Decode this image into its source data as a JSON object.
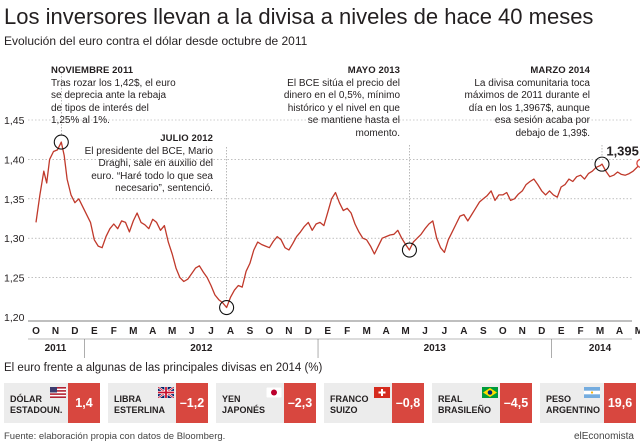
{
  "header": {
    "title": "Los inversores llevan a la divisa a niveles de hace 40 meses",
    "subtitle": "Evolución del euro contra el dólar desde octubre de 2011"
  },
  "annotations": [
    {
      "head": "NOVIEMBRE 2011",
      "lines": [
        "Tras rozar los 1,42$, el euro",
        "se deprecia ante la rebaja",
        "de tipos de interés del",
        "1,25% al 1%."
      ]
    },
    {
      "head": "JULIO 2012",
      "lines": [
        "El presidente del BCE, Mario",
        "Draghi, sale en auxilio del",
        "euro. “Haré todo lo que sea",
        "necesario”, sentenció."
      ]
    },
    {
      "head": "MAYO 2013",
      "lines": [
        "El BCE sitúa el precio del",
        "dinero en el 0,5%, mínimo",
        "histórico y el nivel en que",
        "se mantiene hasta el",
        "momento."
      ]
    },
    {
      "head": "MARZO 2014",
      "lines": [
        "La divisa comunitaria toca",
        "máximos de 2011 durante el",
        "día en los 1,3967$, aunque",
        "esa sesión acaba por",
        "debajo de 1,39$."
      ]
    }
  ],
  "chart_data": {
    "type": "line",
    "title": "",
    "xlabel": "",
    "ylabel": "",
    "ylim": [
      1.2,
      1.45
    ],
    "yticks": [
      "1,20",
      "1,25",
      "1,30",
      "1,35",
      "1,40",
      "1,45"
    ],
    "month_labels": [
      "O",
      "N",
      "D",
      "E",
      "F",
      "M",
      "A",
      "M",
      "J",
      "J",
      "A",
      "S",
      "O",
      "N",
      "D",
      "E",
      "F",
      "M",
      "A",
      "M",
      "J",
      "J",
      "A",
      "S",
      "O",
      "N",
      "D",
      "E",
      "F",
      "M",
      "A",
      "M"
    ],
    "year_labels": [
      {
        "label": "2011",
        "month_index": 1
      },
      {
        "label": "2012",
        "month_index": 8.5
      },
      {
        "label": "2013",
        "month_index": 20.5
      },
      {
        "label": "2014",
        "month_index": 29
      }
    ],
    "end_label": "1,395",
    "highlight_points": [
      {
        "month": 1.3,
        "value": 1.422
      },
      {
        "month": 9.8,
        "value": 1.212
      },
      {
        "month": 19.2,
        "value": 1.285
      },
      {
        "month": 29.1,
        "value": 1.394
      },
      {
        "month": 31.1,
        "value": 1.395
      }
    ],
    "series": [
      {
        "values": [
          [
            0.0,
            1.32
          ],
          [
            0.2,
            1.355
          ],
          [
            0.4,
            1.385
          ],
          [
            0.55,
            1.37
          ],
          [
            0.7,
            1.4
          ],
          [
            0.9,
            1.41
          ],
          [
            1.1,
            1.412
          ],
          [
            1.3,
            1.422
          ],
          [
            1.45,
            1.405
          ],
          [
            1.6,
            1.375
          ],
          [
            1.8,
            1.355
          ],
          [
            2.0,
            1.345
          ],
          [
            2.2,
            1.35
          ],
          [
            2.4,
            1.34
          ],
          [
            2.6,
            1.33
          ],
          [
            2.8,
            1.32
          ],
          [
            3.0,
            1.298
          ],
          [
            3.2,
            1.29
          ],
          [
            3.4,
            1.288
          ],
          [
            3.6,
            1.302
          ],
          [
            3.8,
            1.312
          ],
          [
            4.0,
            1.318
          ],
          [
            4.2,
            1.312
          ],
          [
            4.4,
            1.322
          ],
          [
            4.6,
            1.32
          ],
          [
            4.8,
            1.308
          ],
          [
            5.0,
            1.322
          ],
          [
            5.2,
            1.332
          ],
          [
            5.4,
            1.32
          ],
          [
            5.6,
            1.317
          ],
          [
            5.8,
            1.312
          ],
          [
            6.0,
            1.324
          ],
          [
            6.2,
            1.32
          ],
          [
            6.4,
            1.31
          ],
          [
            6.6,
            1.316
          ],
          [
            6.8,
            1.295
          ],
          [
            7.0,
            1.28
          ],
          [
            7.2,
            1.262
          ],
          [
            7.4,
            1.25
          ],
          [
            7.6,
            1.245
          ],
          [
            7.8,
            1.248
          ],
          [
            8.0,
            1.255
          ],
          [
            8.2,
            1.262
          ],
          [
            8.4,
            1.265
          ],
          [
            8.6,
            1.257
          ],
          [
            8.8,
            1.25
          ],
          [
            9.0,
            1.24
          ],
          [
            9.2,
            1.228
          ],
          [
            9.4,
            1.222
          ],
          [
            9.6,
            1.218
          ],
          [
            9.8,
            1.212
          ],
          [
            10.0,
            1.225
          ],
          [
            10.2,
            1.234
          ],
          [
            10.4,
            1.24
          ],
          [
            10.6,
            1.238
          ],
          [
            10.8,
            1.258
          ],
          [
            11.0,
            1.268
          ],
          [
            11.2,
            1.285
          ],
          [
            11.4,
            1.295
          ],
          [
            11.6,
            1.292
          ],
          [
            11.8,
            1.29
          ],
          [
            12.0,
            1.288
          ],
          [
            12.2,
            1.296
          ],
          [
            12.4,
            1.302
          ],
          [
            12.6,
            1.298
          ],
          [
            12.8,
            1.288
          ],
          [
            13.0,
            1.285
          ],
          [
            13.2,
            1.293
          ],
          [
            13.4,
            1.302
          ],
          [
            13.6,
            1.308
          ],
          [
            13.8,
            1.315
          ],
          [
            14.0,
            1.32
          ],
          [
            14.2,
            1.31
          ],
          [
            14.4,
            1.318
          ],
          [
            14.6,
            1.32
          ],
          [
            14.8,
            1.316
          ],
          [
            15.0,
            1.333
          ],
          [
            15.2,
            1.35
          ],
          [
            15.4,
            1.358
          ],
          [
            15.6,
            1.345
          ],
          [
            15.8,
            1.335
          ],
          [
            16.0,
            1.338
          ],
          [
            16.2,
            1.332
          ],
          [
            16.4,
            1.318
          ],
          [
            16.6,
            1.308
          ],
          [
            16.8,
            1.3
          ],
          [
            17.0,
            1.298
          ],
          [
            17.2,
            1.29
          ],
          [
            17.4,
            1.28
          ],
          [
            17.6,
            1.29
          ],
          [
            17.8,
            1.3
          ],
          [
            18.0,
            1.302
          ],
          [
            18.2,
            1.304
          ],
          [
            18.4,
            1.305
          ],
          [
            18.6,
            1.31
          ],
          [
            18.8,
            1.3
          ],
          [
            19.0,
            1.292
          ],
          [
            19.2,
            1.285
          ],
          [
            19.4,
            1.295
          ],
          [
            19.6,
            1.3
          ],
          [
            19.8,
            1.305
          ],
          [
            20.0,
            1.312
          ],
          [
            20.2,
            1.318
          ],
          [
            20.4,
            1.322
          ],
          [
            20.6,
            1.3
          ],
          [
            20.8,
            1.288
          ],
          [
            21.0,
            1.282
          ],
          [
            21.2,
            1.298
          ],
          [
            21.4,
            1.308
          ],
          [
            21.6,
            1.318
          ],
          [
            21.8,
            1.328
          ],
          [
            22.0,
            1.33
          ],
          [
            22.2,
            1.322
          ],
          [
            22.4,
            1.33
          ],
          [
            22.6,
            1.338
          ],
          [
            22.8,
            1.346
          ],
          [
            23.0,
            1.35
          ],
          [
            23.2,
            1.354
          ],
          [
            23.4,
            1.36
          ],
          [
            23.6,
            1.348
          ],
          [
            23.8,
            1.355
          ],
          [
            24.0,
            1.355
          ],
          [
            24.2,
            1.358
          ],
          [
            24.4,
            1.348
          ],
          [
            24.6,
            1.35
          ],
          [
            24.8,
            1.356
          ],
          [
            25.0,
            1.36
          ],
          [
            25.2,
            1.368
          ],
          [
            25.4,
            1.372
          ],
          [
            25.6,
            1.375
          ],
          [
            25.8,
            1.368
          ],
          [
            26.0,
            1.36
          ],
          [
            26.2,
            1.355
          ],
          [
            26.4,
            1.36
          ],
          [
            26.6,
            1.355
          ],
          [
            26.8,
            1.352
          ],
          [
            27.0,
            1.365
          ],
          [
            27.2,
            1.368
          ],
          [
            27.4,
            1.375
          ],
          [
            27.6,
            1.372
          ],
          [
            27.8,
            1.378
          ],
          [
            28.0,
            1.38
          ],
          [
            28.2,
            1.375
          ],
          [
            28.4,
            1.382
          ],
          [
            28.6,
            1.385
          ],
          [
            28.8,
            1.39
          ],
          [
            29.0,
            1.392
          ],
          [
            29.1,
            1.394
          ],
          [
            29.3,
            1.385
          ],
          [
            29.5,
            1.378
          ],
          [
            29.7,
            1.38
          ],
          [
            29.9,
            1.384
          ],
          [
            30.1,
            1.381
          ],
          [
            30.3,
            1.38
          ],
          [
            30.5,
            1.382
          ],
          [
            30.7,
            1.385
          ],
          [
            30.9,
            1.39
          ],
          [
            31.1,
            1.395
          ]
        ]
      }
    ]
  },
  "section_title": "El euro frente a algunas de las principales divisas en 2014 (%)",
  "currencies": [
    {
      "name1": "DÓLAR",
      "name2": "ESTADOUN.",
      "value": "1,4",
      "flag": "us-flag"
    },
    {
      "name1": "LIBRA",
      "name2": "ESTERLINA",
      "value": "–1,2",
      "flag": "uk-flag"
    },
    {
      "name1": "YEN",
      "name2": "JAPONÉS",
      "value": "–2,3",
      "flag": "japan-flag"
    },
    {
      "name1": "FRANCO",
      "name2": "SUIZO",
      "value": "–0,8",
      "flag": "swiss-flag"
    },
    {
      "name1": "REAL",
      "name2": "BRASILEÑO",
      "value": "–4,5",
      "flag": "brazil-flag"
    },
    {
      "name1": "PESO",
      "name2": "ARGENTINO",
      "value": "19,6",
      "flag": "argentina-flag"
    }
  ],
  "footer": {
    "source": "Fuente: elaboración propia con datos de Bloomberg.",
    "brand": "elEconomista"
  }
}
